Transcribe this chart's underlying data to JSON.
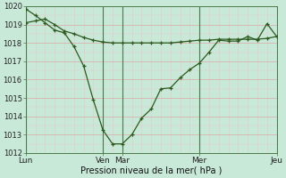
{
  "xlabel": "Pression niveau de la mer( hPa )",
  "bg_color": "#c8e8d8",
  "grid_color_major": "#dba8a8",
  "grid_color_minor": "#e8c8c8",
  "line_color": "#2d5a1e",
  "ylim": [
    1012,
    1020
  ],
  "yticks": [
    1012,
    1013,
    1014,
    1015,
    1016,
    1017,
    1018,
    1019,
    1020
  ],
  "vline_color": "#4a7a4a",
  "vline_positions": [
    0,
    8,
    10,
    18,
    26
  ],
  "xtick_labels": [
    "Lun",
    "Ven",
    "Mar",
    "Mer",
    "Jeu"
  ],
  "xtick_pos": [
    0,
    8,
    10,
    18,
    26
  ],
  "line1_x": [
    0,
    1,
    2,
    3,
    4,
    5,
    6,
    7,
    8,
    9,
    10,
    11,
    12,
    13,
    14,
    15,
    16,
    17,
    18,
    19,
    20,
    21,
    22,
    23,
    24,
    25,
    26
  ],
  "line1_y": [
    1019.85,
    1019.5,
    1019.1,
    1018.7,
    1018.55,
    1017.8,
    1016.75,
    1014.9,
    1013.25,
    1012.5,
    1012.5,
    1013.0,
    1013.9,
    1014.4,
    1015.5,
    1015.55,
    1016.1,
    1016.55,
    1016.9,
    1017.5,
    1018.15,
    1018.1,
    1018.1,
    1018.35,
    1018.15,
    1019.05,
    1018.35
  ],
  "line2_x": [
    0,
    1,
    2,
    3,
    4,
    5,
    6,
    7,
    8,
    9,
    10,
    11,
    12,
    13,
    14,
    15,
    16,
    17,
    18,
    19,
    20,
    21,
    22,
    23,
    24,
    25,
    26
  ],
  "line2_y": [
    1019.1,
    1019.2,
    1019.3,
    1019.0,
    1018.65,
    1018.5,
    1018.3,
    1018.15,
    1018.05,
    1018.0,
    1018.0,
    1018.0,
    1018.0,
    1018.0,
    1018.0,
    1018.0,
    1018.05,
    1018.1,
    1018.15,
    1018.15,
    1018.2,
    1018.2,
    1018.2,
    1018.2,
    1018.2,
    1018.25,
    1018.35
  ]
}
